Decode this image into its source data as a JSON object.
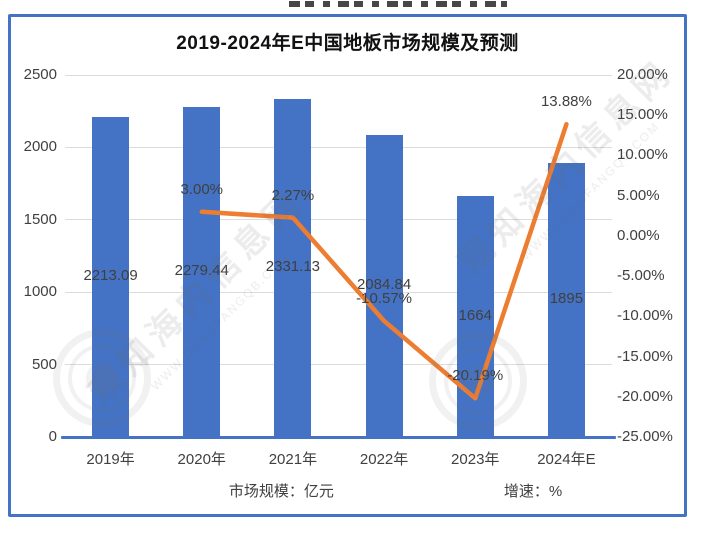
{
  "chart_data": {
    "type": "bar+line",
    "title": "2019-2024年E中国地板市场规模及预测",
    "categories": [
      "2019年",
      "2020年",
      "2021年",
      "2022年",
      "2023年",
      "2024年E"
    ],
    "series": [
      {
        "name": "市场规模：亿元",
        "type": "bar",
        "axis": "left",
        "color": "#4472C4",
        "values": [
          2213.09,
          2279.44,
          2331.13,
          2084.84,
          1664,
          1895
        ],
        "labels": [
          "2213.09",
          "2279.44",
          "2331.13",
          "2084.84",
          "1664",
          "1895"
        ]
      },
      {
        "name": "增速：%",
        "type": "line",
        "axis": "right",
        "color": "#ED7D31",
        "values": [
          null,
          3.0,
          2.27,
          -10.57,
          -20.19,
          13.88
        ],
        "labels": [
          null,
          "3.00%",
          "2.27%",
          "-10.57%",
          "-20.19%",
          "13.88%"
        ]
      }
    ],
    "left_axis": {
      "min": 0,
      "max": 2500,
      "step": 500,
      "ticks": [
        "0",
        "500",
        "1000",
        "1500",
        "2000",
        "2500"
      ]
    },
    "right_axis": {
      "min": -25,
      "max": 20,
      "step": 5,
      "ticks": [
        "20.00%",
        "15.00%",
        "10.00%",
        "5.00%",
        "0.00%",
        "-5.00%",
        "-10.00%",
        "-15.00%",
        "-20.00%",
        "-25.00%"
      ]
    },
    "grid": true,
    "legend_position": "bottom",
    "colors": {
      "border": "#4472C4",
      "gridline": "#dcdcdc",
      "label": "#404040"
    }
  },
  "watermark": {
    "text_cn": "观知海内信息网",
    "text_en": "WWW.DONGFANGQB.COM"
  }
}
